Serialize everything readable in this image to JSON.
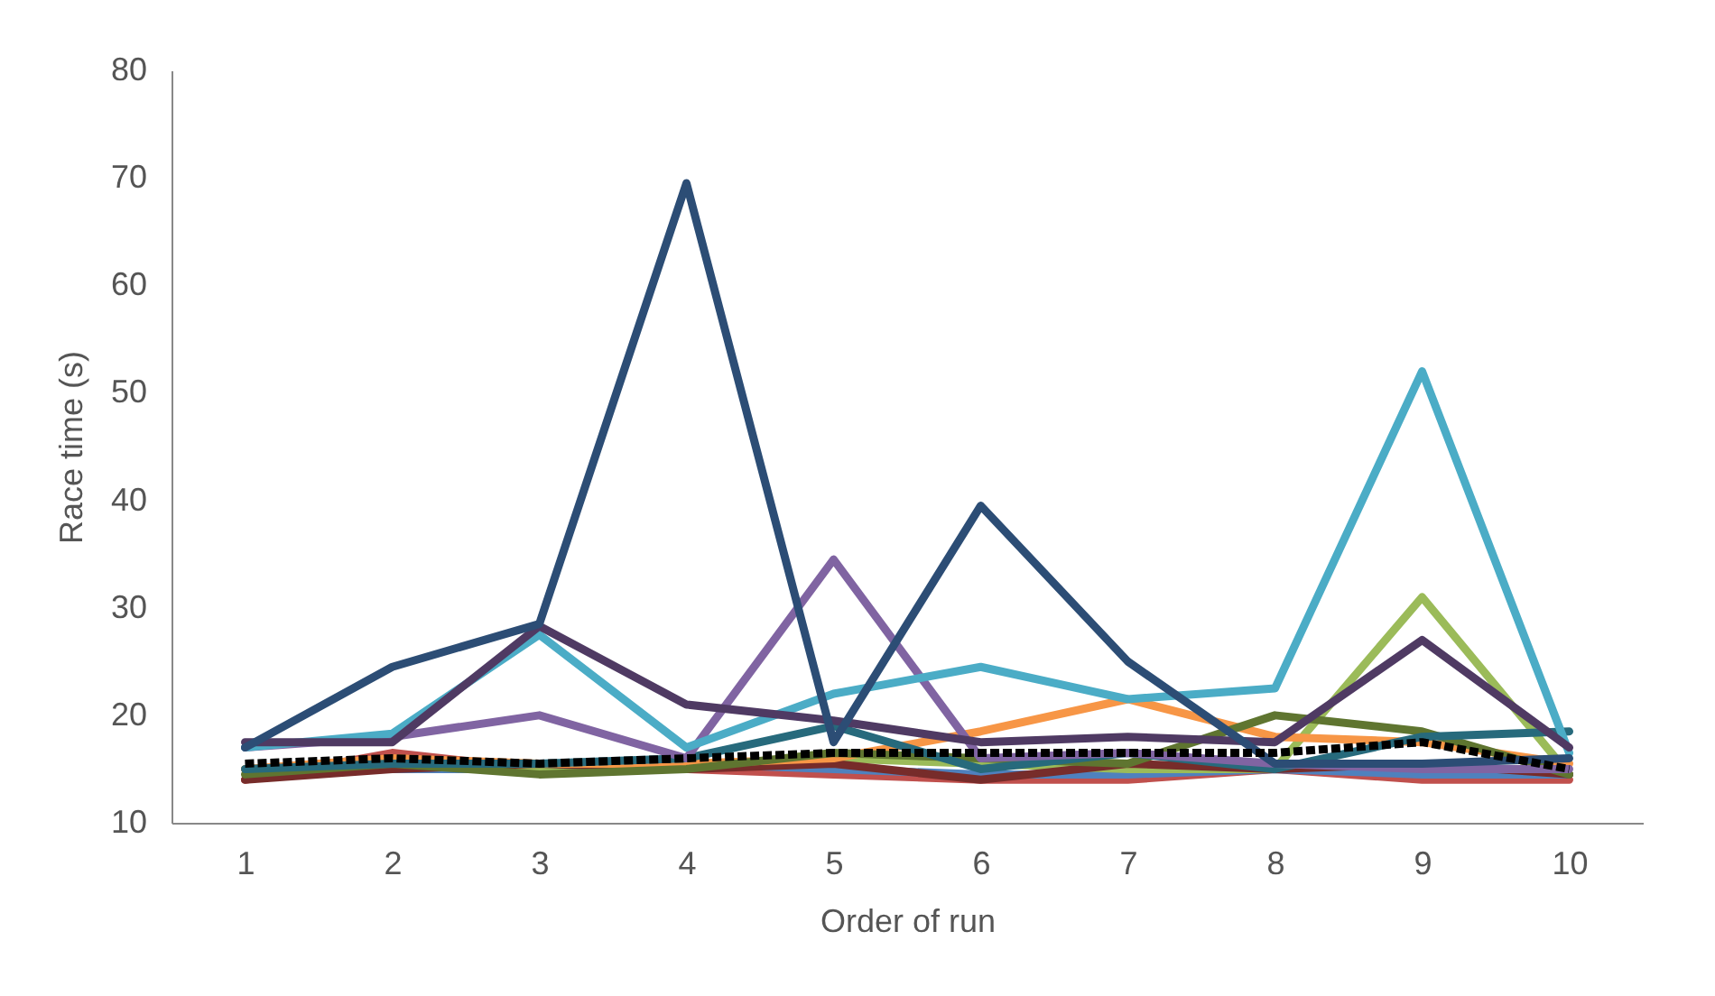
{
  "chart_data": {
    "type": "line",
    "xlabel": "Order of run",
    "ylabel": "Race time (s)",
    "categories": [
      "1",
      "2",
      "3",
      "4",
      "5",
      "6",
      "7",
      "8",
      "9",
      "10"
    ],
    "ylim": [
      10,
      80
    ],
    "yticks": [
      10,
      20,
      30,
      40,
      50,
      60,
      70,
      80
    ],
    "marker": "none",
    "series": [
      {
        "color": "#c0504d",
        "values": [
          14,
          16.5,
          15,
          15,
          14.5,
          14,
          14,
          15,
          14,
          14
        ]
      },
      {
        "color": "#4f81bd",
        "values": [
          15,
          15,
          15,
          15.5,
          15,
          14.5,
          14.5,
          15,
          14.5,
          14.5
        ]
      },
      {
        "color": "#9bbb59",
        "values": [
          15,
          15.5,
          15,
          15,
          16,
          15.5,
          15,
          15,
          31,
          14.5
        ]
      },
      {
        "color": "#772c2a",
        "values": [
          14,
          15,
          15.5,
          15,
          15.5,
          14,
          15.5,
          15,
          15.5,
          14.5
        ]
      },
      {
        "color": "#f79646",
        "values": [
          15,
          16,
          15.5,
          15.5,
          16,
          18.5,
          21.5,
          18,
          17.5,
          15.5
        ]
      },
      {
        "color": "#5f7530",
        "values": [
          14.5,
          15.5,
          14.5,
          15,
          16.5,
          16,
          15.5,
          20,
          18.5,
          14.5
        ]
      },
      {
        "color": "#276a7c",
        "values": [
          15,
          15.5,
          15.5,
          16,
          19,
          15,
          16.5,
          15,
          18,
          18.5
        ]
      },
      {
        "color": "#8064a2",
        "values": [
          17,
          18,
          20,
          16,
          34.5,
          16,
          16.5,
          15.5,
          15,
          15
        ]
      },
      {
        "color": "#4bacc6",
        "values": [
          17,
          18.3,
          27.5,
          17,
          22,
          24.5,
          21.5,
          22.5,
          52,
          16.5
        ]
      },
      {
        "color": "#4f3a63",
        "values": [
          17.5,
          17.5,
          28.3,
          21,
          19.5,
          17.5,
          18,
          17.5,
          27,
          17
        ]
      },
      {
        "color": "#2c4d75",
        "values": [
          17,
          24.5,
          28.5,
          69.5,
          17.5,
          39.5,
          25,
          15.5,
          15.5,
          16
        ]
      },
      {
        "color": "#000000",
        "line_style": "dashed",
        "values": [
          15.5,
          16,
          15.5,
          16,
          16.5,
          16.5,
          16.5,
          16.5,
          17.5,
          15
        ]
      }
    ]
  }
}
